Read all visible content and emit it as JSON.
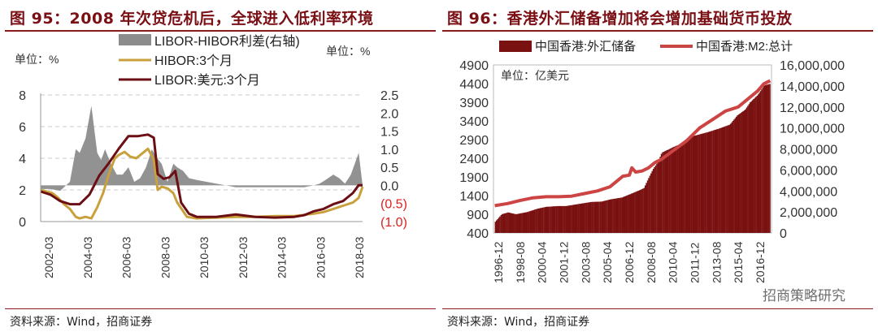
{
  "left": {
    "title": "图 95：2008 年次贷危机后，全球进入低利率环境",
    "source": "资料来源：Wind，招商证券",
    "chart_data": {
      "type": "line",
      "y_left": {
        "unit_label": "单位：%",
        "ticks": [
          0,
          2,
          4,
          6,
          8
        ],
        "range": [
          0,
          8
        ]
      },
      "y_right": {
        "unit_label": "单位：%",
        "ticks": [
          "2.5",
          "2.0",
          "1.5",
          "1.0",
          "0.5",
          "0.0",
          "(0.5)",
          "(1.0)"
        ],
        "range": [
          -1.0,
          2.5
        ]
      },
      "x_ticks": [
        "2002-03",
        "2004-03",
        "2006-03",
        "2008-03",
        "2010-03",
        "2012-03",
        "2014-03",
        "2016-03",
        "2018-03"
      ],
      "x_range": [
        2002.0,
        2018.5
      ],
      "grid": true,
      "legend_position": "top",
      "series": [
        {
          "name": "LIBOR-HIBOR利差(右轴)",
          "kind": "area",
          "axis": "right",
          "color": "#8c8c8c",
          "x": [
            2002.0,
            2002.5,
            2003.0,
            2003.5,
            2003.8,
            2004.0,
            2004.3,
            2004.6,
            2004.9,
            2005.1,
            2005.3,
            2005.6,
            2005.9,
            2006.2,
            2006.5,
            2006.8,
            2007.1,
            2007.4,
            2007.7,
            2007.9,
            2008.2,
            2008.5,
            2008.8,
            2009.0,
            2009.3,
            2009.6,
            2010.0,
            2010.5,
            2011.0,
            2011.5,
            2012.0,
            2012.5,
            2013.0,
            2014.0,
            2015.0,
            2015.5,
            2016.0,
            2016.3,
            2016.6,
            2017.0,
            2017.3,
            2017.6,
            2017.9,
            2018.1,
            2018.3,
            2018.5
          ],
          "values": [
            -0.1,
            -0.1,
            -0.15,
            0.1,
            1.0,
            0.9,
            1.3,
            2.2,
            0.9,
            0.7,
            1.0,
            0.6,
            0.3,
            0.3,
            0.5,
            0.1,
            0.2,
            0.5,
            1.0,
            0.8,
            0.6,
            0.1,
            0.6,
            0.5,
            0.4,
            0.2,
            0.15,
            0.1,
            0.05,
            0.0,
            -0.05,
            -0.05,
            -0.05,
            -0.05,
            -0.05,
            -0.05,
            0.0,
            0.05,
            0.15,
            0.3,
            0.2,
            0.05,
            0.3,
            0.6,
            0.9,
            0.0
          ]
        },
        {
          "name": "HIBOR:3个月",
          "kind": "line",
          "axis": "left",
          "color": "#c9a13c",
          "x": [
            2002.0,
            2002.3,
            2002.6,
            2002.9,
            2003.2,
            2003.5,
            2003.8,
            2004.0,
            2004.3,
            2004.6,
            2004.9,
            2005.2,
            2005.5,
            2005.8,
            2006.0,
            2006.3,
            2006.6,
            2006.9,
            2007.2,
            2007.5,
            2007.8,
            2008.0,
            2008.2,
            2008.5,
            2008.8,
            2009.0,
            2009.5,
            2010.0,
            2011.0,
            2012.0,
            2013.0,
            2014.0,
            2015.0,
            2016.0,
            2016.5,
            2017.0,
            2017.5,
            2018.0,
            2018.3,
            2018.5
          ],
          "values": [
            2.0,
            1.9,
            1.8,
            1.5,
            1.1,
            0.8,
            0.3,
            0.2,
            0.3,
            0.2,
            0.9,
            1.8,
            3.0,
            4.0,
            4.2,
            4.4,
            4.1,
            4.0,
            4.3,
            4.6,
            3.9,
            2.0,
            2.2,
            2.1,
            1.8,
            1.2,
            0.3,
            0.2,
            0.25,
            0.3,
            0.3,
            0.35,
            0.35,
            0.5,
            0.6,
            0.8,
            1.0,
            1.2,
            1.5,
            2.2
          ]
        },
        {
          "name": "LIBOR:美元:3个月",
          "kind": "line",
          "axis": "left",
          "color": "#6b0f14",
          "x": [
            2002.0,
            2002.5,
            2003.0,
            2003.5,
            2004.0,
            2004.5,
            2005.0,
            2005.5,
            2006.0,
            2006.5,
            2007.0,
            2007.5,
            2007.8,
            2008.0,
            2008.3,
            2008.6,
            2008.9,
            2009.2,
            2009.6,
            2010.0,
            2011.0,
            2012.0,
            2013.0,
            2014.0,
            2015.0,
            2015.5,
            2016.0,
            2016.5,
            2017.0,
            2017.5,
            2018.0,
            2018.3,
            2018.5
          ],
          "values": [
            1.9,
            1.7,
            1.3,
            1.1,
            1.1,
            1.7,
            2.9,
            3.7,
            4.6,
            5.4,
            5.4,
            5.5,
            5.3,
            3.0,
            2.7,
            2.8,
            3.2,
            1.2,
            0.5,
            0.3,
            0.3,
            0.45,
            0.3,
            0.25,
            0.3,
            0.4,
            0.65,
            0.8,
            1.1,
            1.3,
            1.8,
            2.3,
            2.3
          ]
        }
      ]
    }
  },
  "right": {
    "title": "图 96：香港外汇储备增加将会增加基础货币投放",
    "source": "资料来源：Wind，招商证券",
    "watermark": "招商策略研究",
    "chart_data": {
      "type": "bar",
      "unit_label": "单位：亿美元",
      "y_left": {
        "ticks": [
          400,
          900,
          1400,
          1900,
          2400,
          2900,
          3400,
          3900,
          4400,
          4900
        ],
        "range": [
          400,
          4900
        ]
      },
      "y_right": {
        "ticks": [
          "0",
          "2,000,000",
          "4,000,000",
          "6,000,000",
          "8,000,000",
          "10,000,000",
          "12,000,000",
          "14,000,000",
          "16,000,000"
        ],
        "range": [
          0,
          16000000
        ]
      },
      "x_ticks": [
        "1996-12",
        "1998-08",
        "2000-04",
        "2001-12",
        "2003-08",
        "2005-04",
        "2006-12",
        "2008-08",
        "2010-04",
        "2011-12",
        "2013-08",
        "2015-04",
        "2016-12"
      ],
      "x_range": [
        1996.9,
        2018.6
      ],
      "grid": false,
      "legend_position": "top",
      "series": [
        {
          "name": "中国香港:外汇储备",
          "kind": "bar",
          "axis": "left",
          "color": "#7a1111",
          "x": [
            1997.0,
            1997.5,
            1998.0,
            1998.6,
            1999.5,
            2000.3,
            2001.0,
            2001.9,
            2002.5,
            2003.6,
            2004.5,
            2005.3,
            2006.0,
            2006.9,
            2007.6,
            2008.3,
            2008.6,
            2008.9,
            2009.3,
            2009.7,
            2010.0,
            2010.3,
            2010.9,
            2011.9,
            2012.5,
            2013.6,
            2014.5,
            2015.3,
            2015.9,
            2016.5,
            2016.9,
            2017.5,
            2018.0,
            2018.5
          ],
          "values": [
            700,
            900,
            950,
            900,
            960,
            1050,
            1100,
            1120,
            1120,
            1180,
            1230,
            1240,
            1300,
            1350,
            1450,
            1550,
            1600,
            1820,
            2100,
            2300,
            2550,
            2600,
            2700,
            2850,
            3000,
            3100,
            3200,
            3300,
            3550,
            3700,
            3900,
            4100,
            4350,
            4400
          ]
        },
        {
          "name": "中国香港:M2:总计",
          "kind": "line",
          "axis": "right",
          "color": "#cc4444",
          "x": [
            1997.0,
            1998.0,
            1999.0,
            2000.0,
            2001.0,
            2002.0,
            2003.0,
            2004.0,
            2005.0,
            2006.0,
            2007.0,
            2007.5,
            2007.7,
            2008.0,
            2008.5,
            2009.0,
            2009.5,
            2010.0,
            2011.0,
            2012.0,
            2013.0,
            2014.0,
            2015.0,
            2016.0,
            2016.5,
            2017.0,
            2017.5,
            2018.0,
            2018.5
          ],
          "values": [
            2600000,
            2800000,
            3100000,
            3350000,
            3450000,
            3450000,
            3500000,
            3750000,
            4000000,
            4400000,
            5400000,
            5500000,
            6200000,
            5800000,
            5900000,
            6200000,
            6700000,
            7000000,
            7900000,
            8800000,
            10000000,
            10800000,
            11600000,
            12000000,
            12500000,
            13000000,
            13500000,
            14200000,
            14500000
          ]
        }
      ]
    }
  }
}
